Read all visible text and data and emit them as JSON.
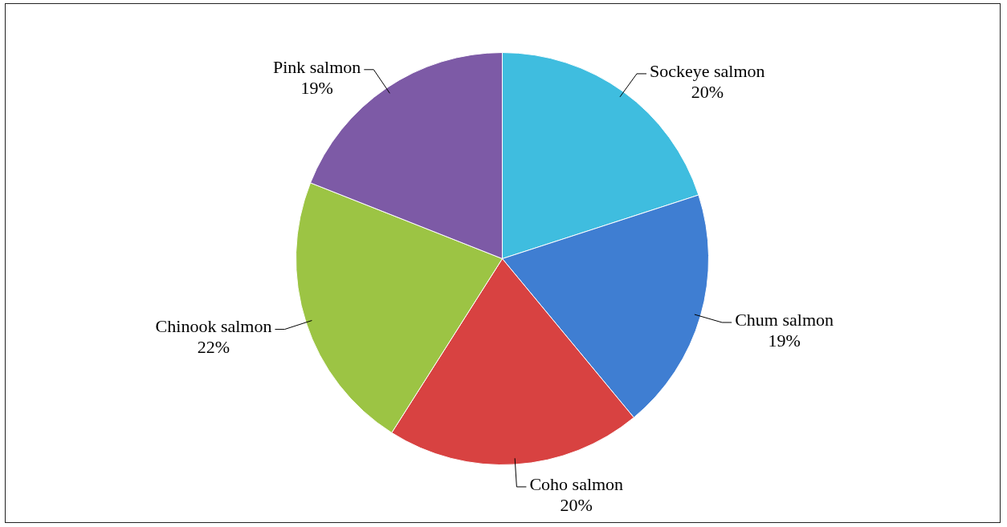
{
  "chart_data": {
    "type": "pie",
    "categories": [
      "Sockeye salmon",
      "Chum salmon",
      "Coho salmon",
      "Chinook salmon",
      "Pink salmon"
    ],
    "values": [
      20,
      19,
      20,
      22,
      19
    ],
    "value_labels": [
      "20%",
      "19%",
      "20%",
      "22%",
      "19%"
    ],
    "colors": [
      "#3fbddf",
      "#3f7ed2",
      "#d84241",
      "#9cc444",
      "#7d5aa6"
    ],
    "legend": false
  }
}
